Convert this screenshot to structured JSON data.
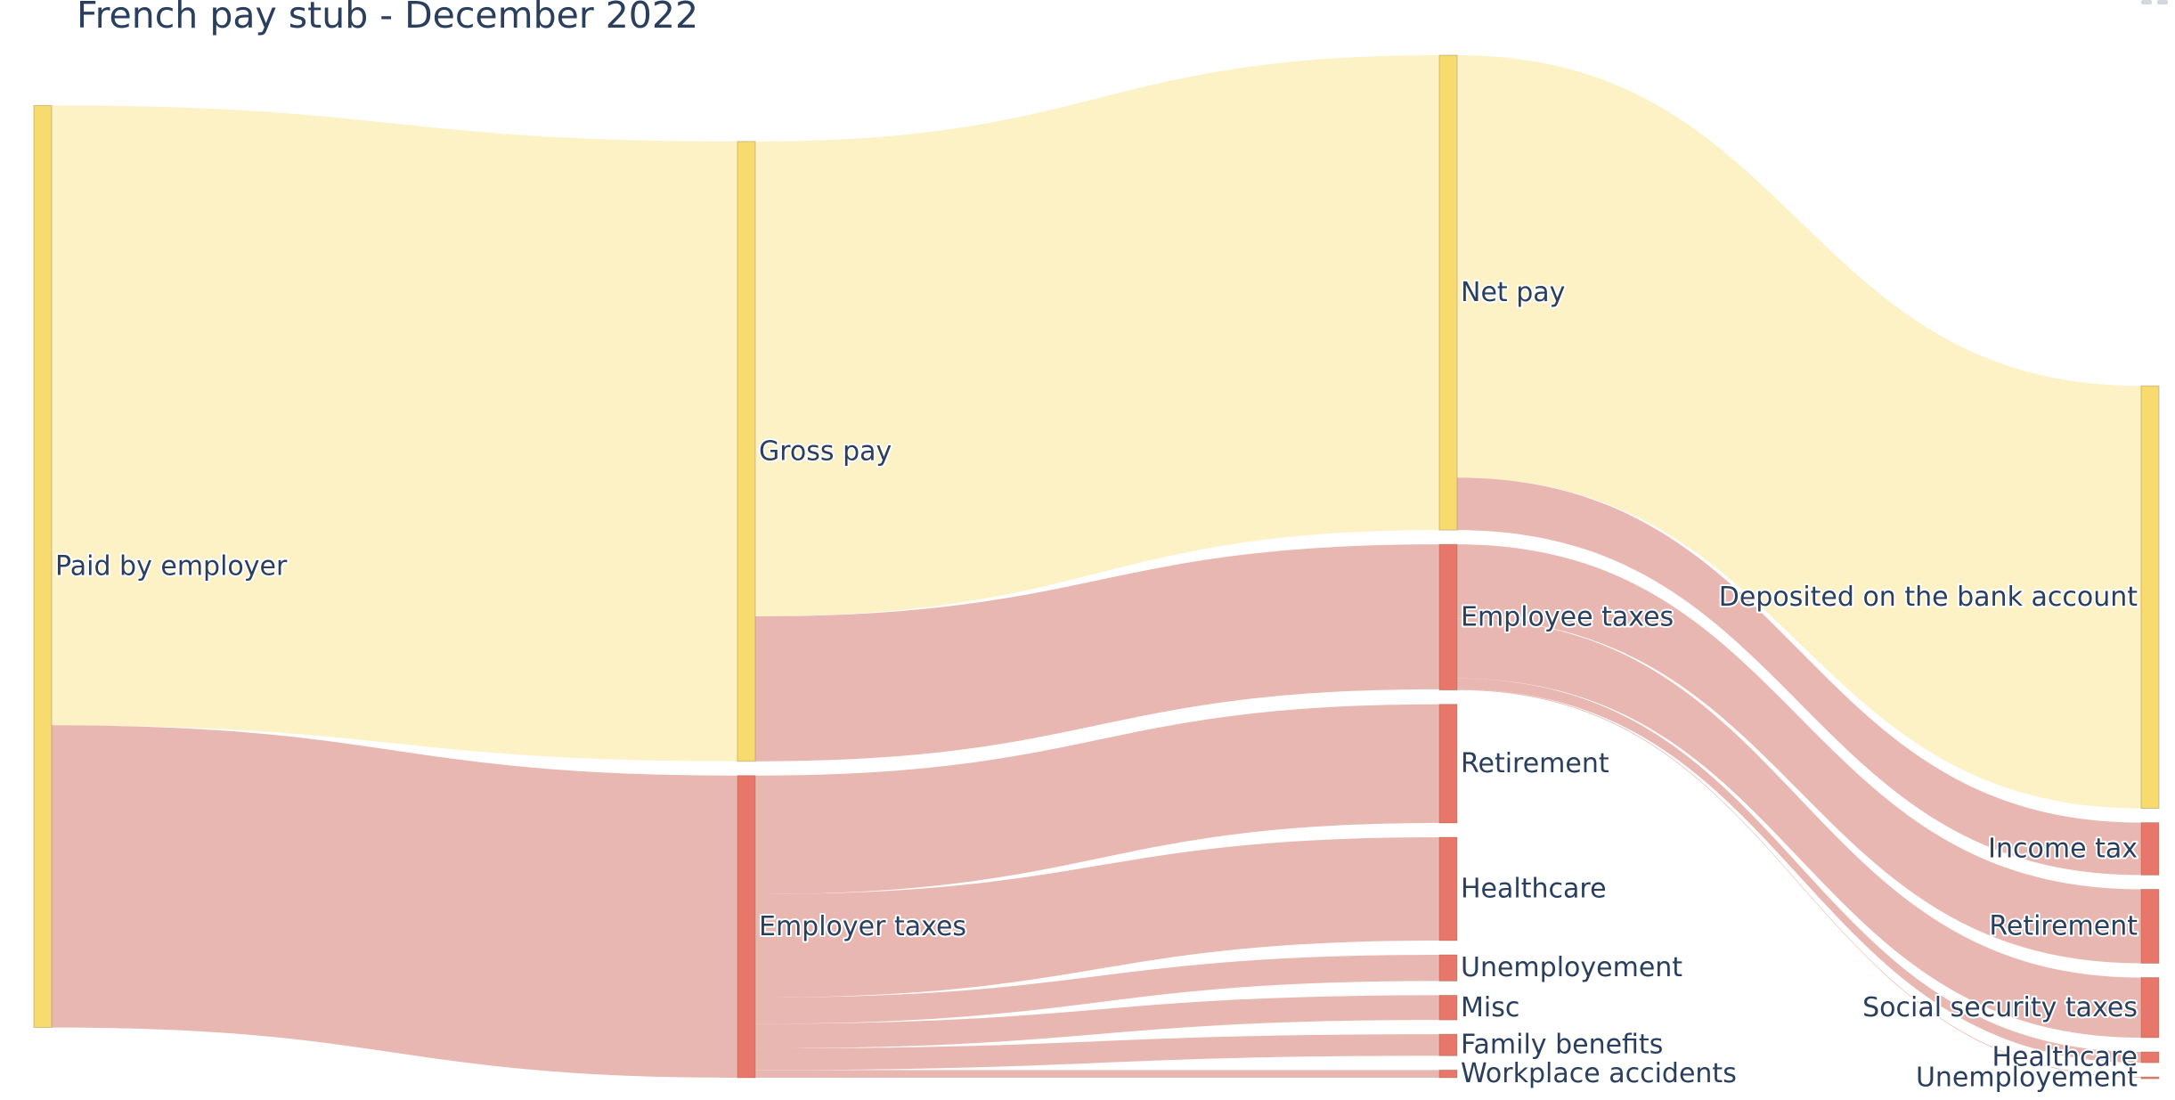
{
  "colors": {
    "pay": "#f8db6f",
    "pay_link": "#fdf1c6",
    "tax": "#e8766b",
    "tax_link": "#e9b7b2",
    "title": "#2a3f5f"
  },
  "chart_data": {
    "type": "sankey",
    "title": "French pay stub - December 2022",
    "nodes": [
      {
        "id": "paid_by_employer",
        "label": "Paid by employer",
        "kind": "pay"
      },
      {
        "id": "gross_pay",
        "label": "Gross pay",
        "kind": "pay"
      },
      {
        "id": "employer_taxes",
        "label": "Employer taxes",
        "kind": "tax"
      },
      {
        "id": "net_pay",
        "label": "Net pay",
        "kind": "pay"
      },
      {
        "id": "employee_taxes",
        "label": "Employee taxes",
        "kind": "tax"
      },
      {
        "id": "deposited",
        "label": "Deposited on the bank account",
        "kind": "pay"
      },
      {
        "id": "income_tax",
        "label": "Income tax",
        "kind": "tax"
      },
      {
        "id": "ee_retirement",
        "label": "Retirement",
        "kind": "tax"
      },
      {
        "id": "ee_social_security",
        "label": "Social security taxes",
        "kind": "tax"
      },
      {
        "id": "ee_healthcare",
        "label": "Healthcare",
        "kind": "tax"
      },
      {
        "id": "ee_unemployement",
        "label": "Unemployement",
        "kind": "tax"
      },
      {
        "id": "er_retirement",
        "label": "Retirement",
        "kind": "tax"
      },
      {
        "id": "er_healthcare",
        "label": "Healthcare",
        "kind": "tax"
      },
      {
        "id": "er_unemployement",
        "label": "Unemployement",
        "kind": "tax"
      },
      {
        "id": "er_misc",
        "label": "Misc",
        "kind": "tax"
      },
      {
        "id": "er_family_benefits",
        "label": "Family benefits",
        "kind": "tax"
      },
      {
        "id": "er_workplace_accidents",
        "label": "Workplace accidents",
        "kind": "tax"
      }
    ],
    "links": [
      {
        "source": "paid_by_employer",
        "target": "gross_pay",
        "value": 4020
      },
      {
        "source": "paid_by_employer",
        "target": "employer_taxes",
        "value": 1960
      },
      {
        "source": "gross_pay",
        "target": "net_pay",
        "value": 3080
      },
      {
        "source": "gross_pay",
        "target": "employee_taxes",
        "value": 940
      },
      {
        "source": "net_pay",
        "target": "deposited",
        "value": 2740
      },
      {
        "source": "net_pay",
        "target": "income_tax",
        "value": 340
      },
      {
        "source": "employee_taxes",
        "target": "ee_retirement",
        "value": 480
      },
      {
        "source": "employee_taxes",
        "target": "ee_social_security",
        "value": 390
      },
      {
        "source": "employee_taxes",
        "target": "ee_healthcare",
        "value": 70
      },
      {
        "source": "employee_taxes",
        "target": "ee_unemployement",
        "value": 5
      },
      {
        "source": "employer_taxes",
        "target": "er_retirement",
        "value": 770
      },
      {
        "source": "employer_taxes",
        "target": "er_healthcare",
        "value": 670
      },
      {
        "source": "employer_taxes",
        "target": "er_unemployement",
        "value": 170
      },
      {
        "source": "employer_taxes",
        "target": "er_misc",
        "value": 160
      },
      {
        "source": "employer_taxes",
        "target": "er_family_benefits",
        "value": 140
      },
      {
        "source": "employer_taxes",
        "target": "er_workplace_accidents",
        "value": 50
      }
    ]
  }
}
